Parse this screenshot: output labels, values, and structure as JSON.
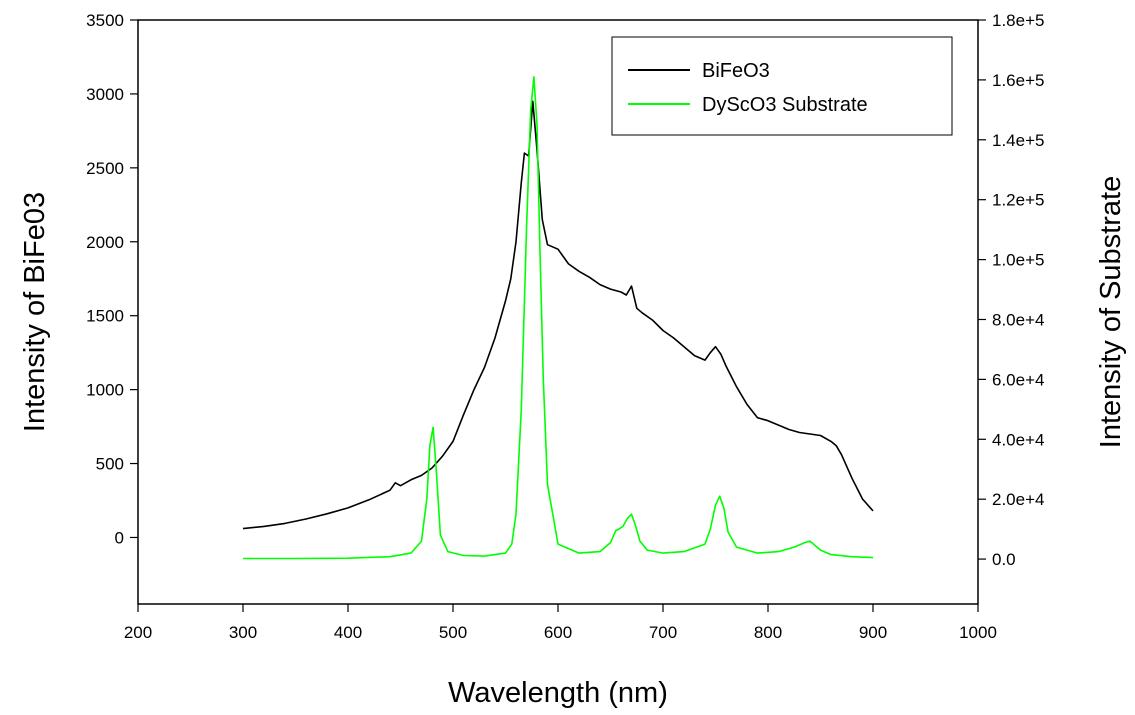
{
  "chart_data": {
    "type": "line",
    "title": "",
    "xlabel": "Wavelength (nm)",
    "ylabel_left": "Intensity of BiFe03",
    "ylabel_right": "Intensity of Substrate",
    "xlim": [
      200,
      1000
    ],
    "ylim_left": [
      -450,
      3500
    ],
    "ylim_right": [
      -15000,
      180000
    ],
    "x_ticks": [
      200,
      300,
      400,
      500,
      600,
      700,
      800,
      900,
      1000
    ],
    "y_ticks_left": [
      0,
      500,
      1000,
      1500,
      2000,
      2500,
      3000,
      3500
    ],
    "y_ticks_right": [
      0,
      20000,
      40000,
      60000,
      80000,
      100000,
      120000,
      140000,
      160000,
      180000
    ],
    "x_tick_labels": [
      "200",
      "300",
      "400",
      "500",
      "600",
      "700",
      "800",
      "900",
      "1000"
    ],
    "y_tick_labels_left": [
      "0",
      "500",
      "1000",
      "1500",
      "2000",
      "2500",
      "3000",
      "3500"
    ],
    "y_tick_labels_right": [
      "0.0",
      "2.0e+4",
      "4.0e+4",
      "6.0e+4",
      "8.0e+4",
      "1.0e+5",
      "1.2e+5",
      "1.4e+5",
      "1.6e+5",
      "1.8e+5"
    ],
    "grid": false,
    "legend_position": "top-right",
    "series": [
      {
        "name": "BiFeO3",
        "axis": "left",
        "color": "#000000",
        "x": [
          300,
          320,
          340,
          360,
          380,
          400,
          420,
          440,
          445,
          450,
          460,
          470,
          480,
          490,
          500,
          510,
          520,
          530,
          540,
          550,
          555,
          560,
          565,
          568,
          572,
          576,
          580,
          585,
          590,
          600,
          610,
          620,
          630,
          640,
          650,
          660,
          665,
          670,
          675,
          680,
          690,
          700,
          710,
          720,
          730,
          740,
          745,
          750,
          755,
          760,
          770,
          780,
          790,
          800,
          810,
          820,
          830,
          840,
          850,
          860,
          865,
          870,
          880,
          890,
          900
        ],
        "y": [
          60,
          75,
          95,
          125,
          160,
          200,
          255,
          320,
          370,
          350,
          390,
          420,
          470,
          550,
          650,
          830,
          1000,
          1150,
          1350,
          1600,
          1750,
          2000,
          2400,
          2600,
          2580,
          2950,
          2620,
          2150,
          1980,
          1950,
          1850,
          1800,
          1760,
          1710,
          1680,
          1660,
          1640,
          1700,
          1550,
          1520,
          1470,
          1400,
          1350,
          1290,
          1230,
          1200,
          1250,
          1290,
          1240,
          1160,
          1020,
          900,
          810,
          790,
          760,
          730,
          710,
          700,
          690,
          650,
          620,
          560,
          400,
          260,
          180
        ]
      },
      {
        "name": "DyScO3 Substrate",
        "axis": "right",
        "color": "#00ff00",
        "x": [
          300,
          350,
          400,
          440,
          460,
          470,
          475,
          478,
          481,
          484,
          488,
          495,
          510,
          530,
          550,
          556,
          560,
          565,
          570,
          574,
          577,
          580,
          583,
          586,
          590,
          600,
          620,
          640,
          650,
          655,
          658,
          662,
          666,
          670,
          674,
          678,
          685,
          700,
          720,
          740,
          745,
          750,
          754,
          758,
          762,
          770,
          790,
          810,
          825,
          835,
          840,
          845,
          850,
          860,
          880,
          900
        ],
        "y": [
          200,
          200,
          300,
          800,
          2000,
          6000,
          20000,
          38000,
          44000,
          30000,
          8000,
          2500,
          1200,
          1000,
          2000,
          5000,
          15000,
          50000,
          110000,
          150000,
          161000,
          145000,
          100000,
          60000,
          25000,
          5000,
          2000,
          2500,
          5500,
          9500,
          10000,
          11000,
          13500,
          15000,
          11000,
          6000,
          3000,
          2000,
          2500,
          5000,
          10000,
          18000,
          21000,
          17000,
          9000,
          4000,
          2000,
          2500,
          4000,
          5500,
          6000,
          4500,
          3000,
          1500,
          800,
          500
        ]
      }
    ]
  }
}
